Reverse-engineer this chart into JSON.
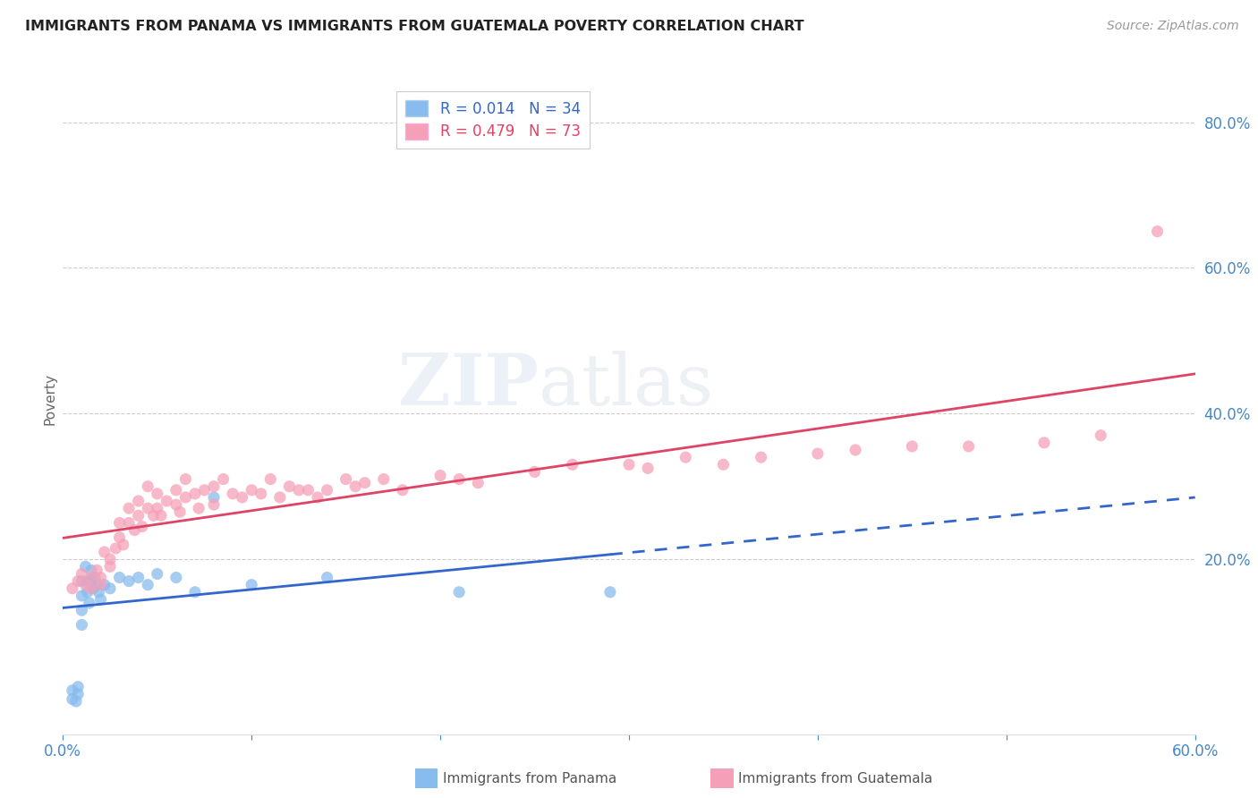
{
  "title": "IMMIGRANTS FROM PANAMA VS IMMIGRANTS FROM GUATEMALA POVERTY CORRELATION CHART",
  "source": "Source: ZipAtlas.com",
  "ylabel": "Poverty",
  "xlim": [
    0.0,
    0.6
  ],
  "ylim": [
    -0.04,
    0.88
  ],
  "panama_color": "#88bbee",
  "guatemala_color": "#f5a0b8",
  "panama_line_color": "#3366cc",
  "guatemala_line_color": "#dd4466",
  "tick_label_color": "#4488cc",
  "axis_label_color": "#666666",
  "grid_color": "#cccccc",
  "background_color": "#ffffff",
  "watermark": "ZIPatlas",
  "legend1_label": "R = 0.014   N = 34",
  "legend2_label": "R = 0.479   N = 73",
  "panama_x": [
    0.005,
    0.005,
    0.007,
    0.008,
    0.008,
    0.01,
    0.01,
    0.01,
    0.01,
    0.012,
    0.013,
    0.013,
    0.014,
    0.015,
    0.015,
    0.016,
    0.017,
    0.018,
    0.019,
    0.02,
    0.022,
    0.025,
    0.03,
    0.035,
    0.04,
    0.045,
    0.05,
    0.06,
    0.07,
    0.08,
    0.1,
    0.14,
    0.21,
    0.29
  ],
  "panama_y": [
    0.02,
    0.008,
    0.005,
    0.025,
    0.015,
    0.17,
    0.15,
    0.13,
    0.11,
    0.19,
    0.17,
    0.155,
    0.14,
    0.185,
    0.17,
    0.16,
    0.175,
    0.165,
    0.155,
    0.145,
    0.165,
    0.16,
    0.175,
    0.17,
    0.175,
    0.165,
    0.18,
    0.175,
    0.155,
    0.285,
    0.165,
    0.175,
    0.155,
    0.155
  ],
  "guatemala_x": [
    0.005,
    0.008,
    0.01,
    0.012,
    0.015,
    0.015,
    0.018,
    0.02,
    0.02,
    0.022,
    0.025,
    0.025,
    0.028,
    0.03,
    0.03,
    0.032,
    0.035,
    0.035,
    0.038,
    0.04,
    0.04,
    0.042,
    0.045,
    0.045,
    0.048,
    0.05,
    0.05,
    0.052,
    0.055,
    0.06,
    0.06,
    0.062,
    0.065,
    0.065,
    0.07,
    0.072,
    0.075,
    0.08,
    0.08,
    0.085,
    0.09,
    0.095,
    0.1,
    0.105,
    0.11,
    0.115,
    0.12,
    0.125,
    0.13,
    0.135,
    0.14,
    0.15,
    0.155,
    0.16,
    0.17,
    0.18,
    0.2,
    0.21,
    0.22,
    0.25,
    0.27,
    0.3,
    0.31,
    0.33,
    0.35,
    0.37,
    0.4,
    0.42,
    0.45,
    0.48,
    0.52,
    0.55,
    0.58
  ],
  "guatemala_y": [
    0.16,
    0.17,
    0.18,
    0.165,
    0.175,
    0.16,
    0.185,
    0.175,
    0.165,
    0.21,
    0.2,
    0.19,
    0.215,
    0.25,
    0.23,
    0.22,
    0.27,
    0.25,
    0.24,
    0.28,
    0.26,
    0.245,
    0.3,
    0.27,
    0.26,
    0.29,
    0.27,
    0.26,
    0.28,
    0.295,
    0.275,
    0.265,
    0.31,
    0.285,
    0.29,
    0.27,
    0.295,
    0.3,
    0.275,
    0.31,
    0.29,
    0.285,
    0.295,
    0.29,
    0.31,
    0.285,
    0.3,
    0.295,
    0.295,
    0.285,
    0.295,
    0.31,
    0.3,
    0.305,
    0.31,
    0.295,
    0.315,
    0.31,
    0.305,
    0.32,
    0.33,
    0.33,
    0.325,
    0.34,
    0.33,
    0.34,
    0.345,
    0.35,
    0.355,
    0.355,
    0.36,
    0.37,
    0.65
  ],
  "panama_line_x_solid_end": 0.295,
  "guatemala_line_start_y": 0.15,
  "guatemala_line_end_y": 0.4
}
